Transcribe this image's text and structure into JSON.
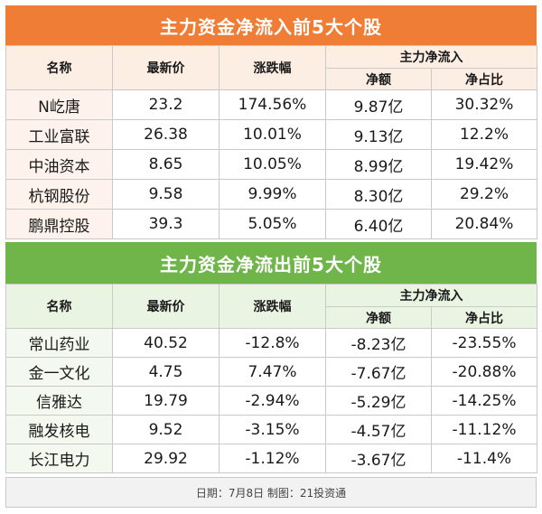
{
  "inflow": {
    "title": "主力资金净流入前5大个股",
    "headers": {
      "name": "名称",
      "price": "最新价",
      "change": "涨跌幅",
      "group": "主力净流入",
      "net": "净额",
      "ratio": "净占比"
    },
    "rows": [
      {
        "name": "N屹唐",
        "price": "23.2",
        "change": "174.56%",
        "net": "9.87亿",
        "ratio": "30.32%"
      },
      {
        "name": "工业富联",
        "price": "26.38",
        "change": "10.01%",
        "net": "9.13亿",
        "ratio": "12.2%"
      },
      {
        "name": "中油资本",
        "price": "8.65",
        "change": "10.05%",
        "net": "8.99亿",
        "ratio": "19.42%"
      },
      {
        "name": "杭钢股份",
        "price": "9.58",
        "change": "9.99%",
        "net": "8.30亿",
        "ratio": "29.2%"
      },
      {
        "name": "鹏鼎控股",
        "price": "39.3",
        "change": "5.05%",
        "net": "6.40亿",
        "ratio": "20.84%"
      }
    ]
  },
  "outflow": {
    "title": "主力资金净流出前5大个股",
    "headers": {
      "name": "名称",
      "price": "最新价",
      "change": "涨跌幅",
      "group": "主力净流入",
      "net": "净额",
      "ratio": "净占比"
    },
    "rows": [
      {
        "name": "常山药业",
        "price": "40.52",
        "change": "-12.8%",
        "net": "-8.23亿",
        "ratio": "-23.55%"
      },
      {
        "name": "金一文化",
        "price": "4.75",
        "change": "7.47%",
        "net": "-7.67亿",
        "ratio": "-20.88%"
      },
      {
        "name": "信雅达",
        "price": "19.79",
        "change": "-2.94%",
        "net": "-5.29亿",
        "ratio": "-14.25%"
      },
      {
        "name": "融发核电",
        "price": "9.52",
        "change": "-3.15%",
        "net": "-4.57亿",
        "ratio": "-11.12%"
      },
      {
        "name": "长江电力",
        "price": "29.92",
        "change": "-1.12%",
        "net": "-3.67亿",
        "ratio": "-11.4%"
      }
    ]
  },
  "footer": "日期：7月8日 制图：21投资通",
  "colors": {
    "inflow_banner": "#f07d35",
    "outflow_banner": "#6fb54a"
  }
}
